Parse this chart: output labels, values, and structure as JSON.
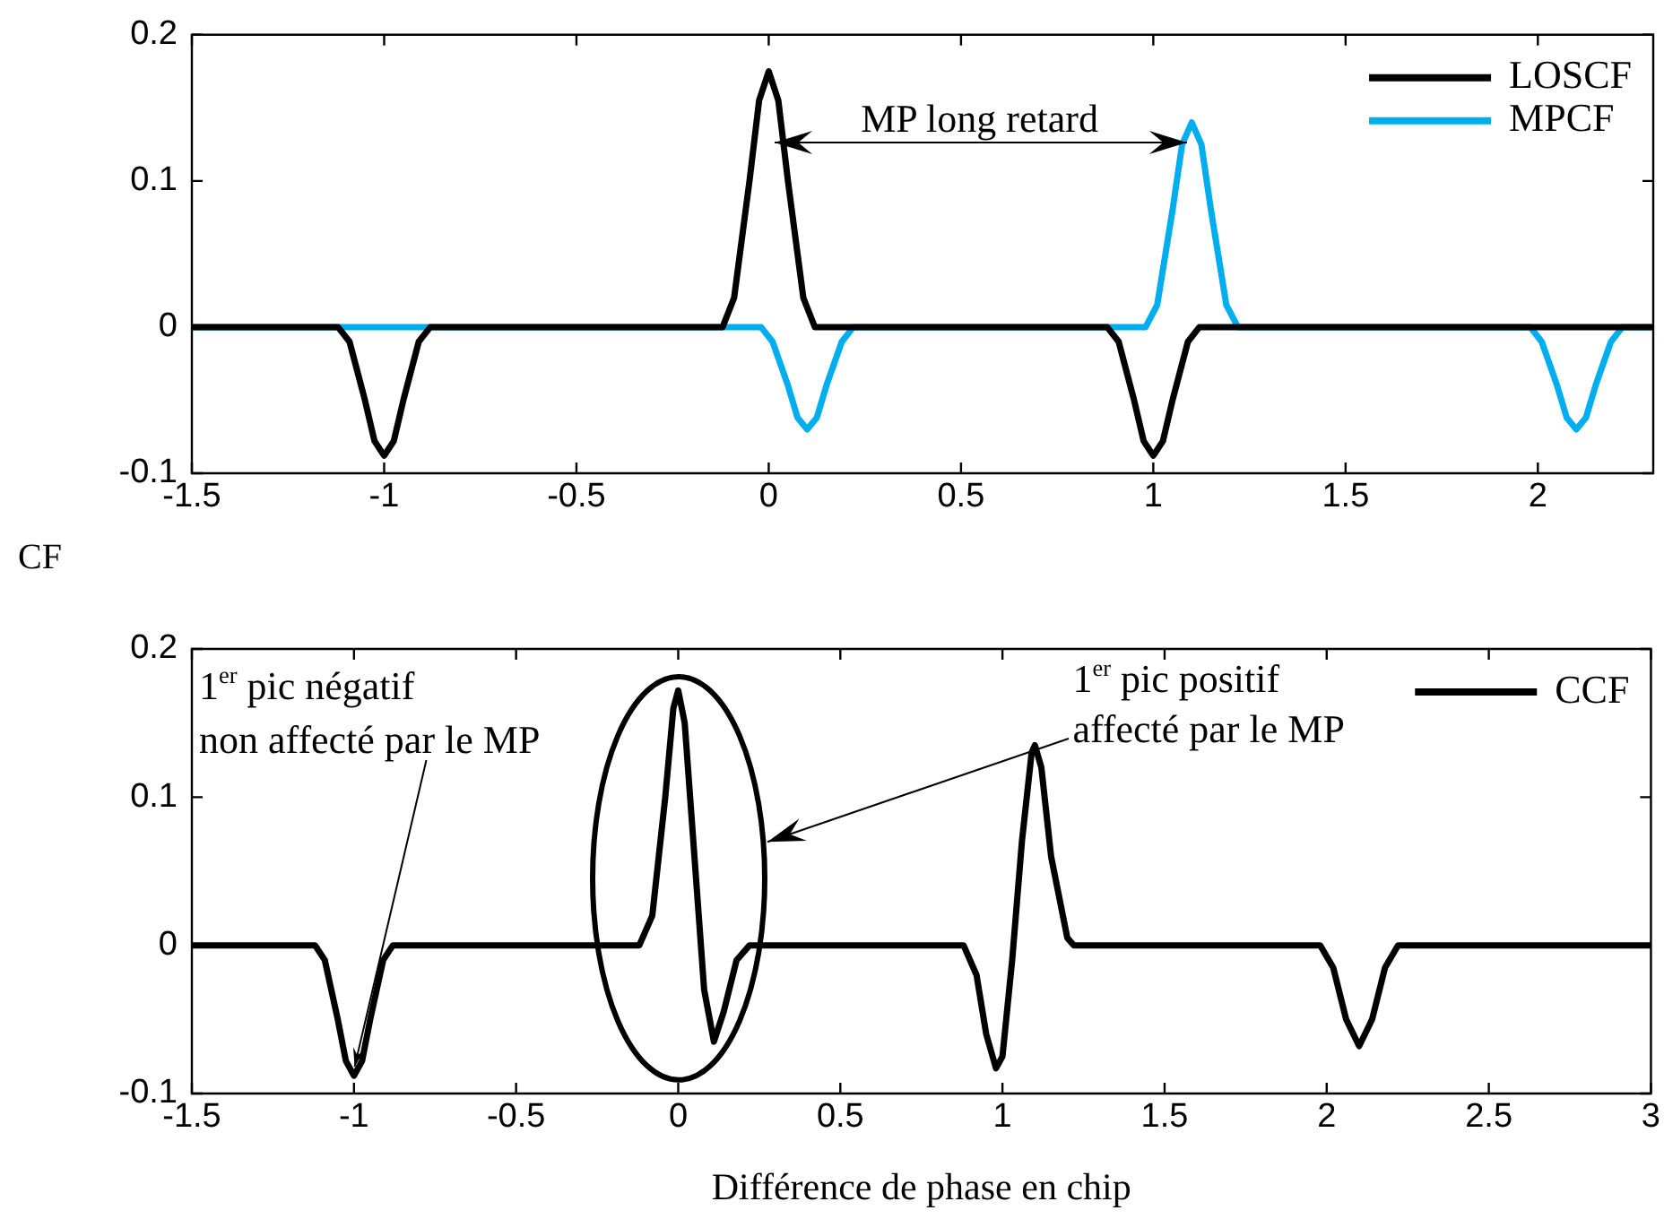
{
  "chart_data": [
    {
      "type": "line",
      "ylabel": "CF",
      "xlim": [
        -1.5,
        2.3
      ],
      "xticks": [
        -1.5,
        -1,
        -0.5,
        0,
        0.5,
        1,
        1.5,
        2
      ],
      "ylim": [
        -0.1,
        0.2
      ],
      "yticks": [
        -0.1,
        0,
        0.1,
        0.2
      ],
      "grid": false,
      "legend": "top right",
      "marker": "none",
      "line_style": "solid",
      "annotations": [
        "MP long retard"
      ],
      "series": [
        {
          "name": "LOSCF",
          "color": "#000000",
          "x": [
            -1.5,
            -1.12,
            -1.09,
            -1.05,
            -1.025,
            -1,
            -0.975,
            -0.95,
            -0.91,
            -0.88,
            -0.12,
            -0.09,
            -0.05,
            -0.025,
            0,
            0.025,
            0.05,
            0.09,
            0.12,
            0.88,
            0.91,
            0.95,
            0.975,
            1,
            1.025,
            1.05,
            1.09,
            1.12,
            2.3
          ],
          "values": [
            0,
            0,
            -0.01,
            -0.05,
            -0.078,
            -0.088,
            -0.078,
            -0.05,
            -0.01,
            0,
            0,
            0.02,
            0.1,
            0.155,
            0.175,
            0.155,
            0.1,
            0.02,
            0,
            0,
            -0.01,
            -0.05,
            -0.078,
            -0.088,
            -0.078,
            -0.05,
            -0.01,
            0,
            0
          ]
        },
        {
          "name": "MPCF",
          "color": "#00aeef",
          "x": [
            -1.5,
            -0.02,
            0.01,
            0.05,
            0.075,
            0.1,
            0.125,
            0.15,
            0.19,
            0.22,
            0.98,
            1.01,
            1.05,
            1.075,
            1.1,
            1.125,
            1.15,
            1.19,
            1.22,
            1.98,
            2.01,
            2.05,
            2.075,
            2.1,
            2.125,
            2.15,
            2.19,
            2.22,
            2.3
          ],
          "values": [
            0,
            0,
            -0.01,
            -0.04,
            -0.062,
            -0.07,
            -0.062,
            -0.04,
            -0.01,
            0,
            0,
            0.015,
            0.08,
            0.125,
            0.14,
            0.125,
            0.08,
            0.015,
            0,
            0,
            -0.01,
            -0.04,
            -0.062,
            -0.07,
            -0.062,
            -0.04,
            -0.01,
            0,
            0
          ]
        }
      ]
    },
    {
      "type": "line",
      "xlabel": "Différence de phase en chip",
      "xlim": [
        -1.5,
        3
      ],
      "xticks": [
        -1.5,
        -1,
        -0.5,
        0,
        0.5,
        1,
        1.5,
        2,
        2.5,
        3
      ],
      "ylim": [
        -0.1,
        0.2
      ],
      "yticks": [
        -0.1,
        0,
        0.1,
        0.2
      ],
      "grid": false,
      "legend": "top right",
      "marker": "none",
      "line_style": "solid",
      "annotations": [
        {
          "text": "1$^{er}$ pic négatif\nnon affecté par le MP",
          "x": -1,
          "y": -0.088
        },
        "1$^{er}$ pic positif\naffecté par le MP"
      ],
      "series": [
        {
          "name": "CCF",
          "color": "#000000",
          "x": [
            -1.5,
            -1.12,
            -1.09,
            -1.05,
            -1.025,
            -1,
            -0.975,
            -0.95,
            -0.91,
            -0.88,
            -0.12,
            -0.08,
            -0.04,
            -0.015,
            0,
            0.02,
            0.05,
            0.08,
            0.11,
            0.14,
            0.18,
            0.22,
            0.88,
            0.92,
            0.95,
            0.98,
            1,
            1.03,
            1.06,
            1.09,
            1.1,
            1.12,
            1.15,
            1.2,
            1.22,
            1.98,
            2.02,
            2.06,
            2.1,
            2.14,
            2.18,
            2.22,
            3
          ],
          "values": [
            0,
            0,
            -0.01,
            -0.05,
            -0.078,
            -0.088,
            -0.078,
            -0.05,
            -0.01,
            0,
            0,
            0.02,
            0.1,
            0.16,
            0.172,
            0.15,
            0.06,
            -0.03,
            -0.065,
            -0.045,
            -0.01,
            0,
            0,
            -0.02,
            -0.06,
            -0.083,
            -0.075,
            -0.01,
            0.07,
            0.13,
            0.135,
            0.12,
            0.06,
            0.005,
            0,
            0,
            -0.015,
            -0.05,
            -0.068,
            -0.05,
            -0.015,
            0,
            0
          ]
        }
      ]
    }
  ]
}
